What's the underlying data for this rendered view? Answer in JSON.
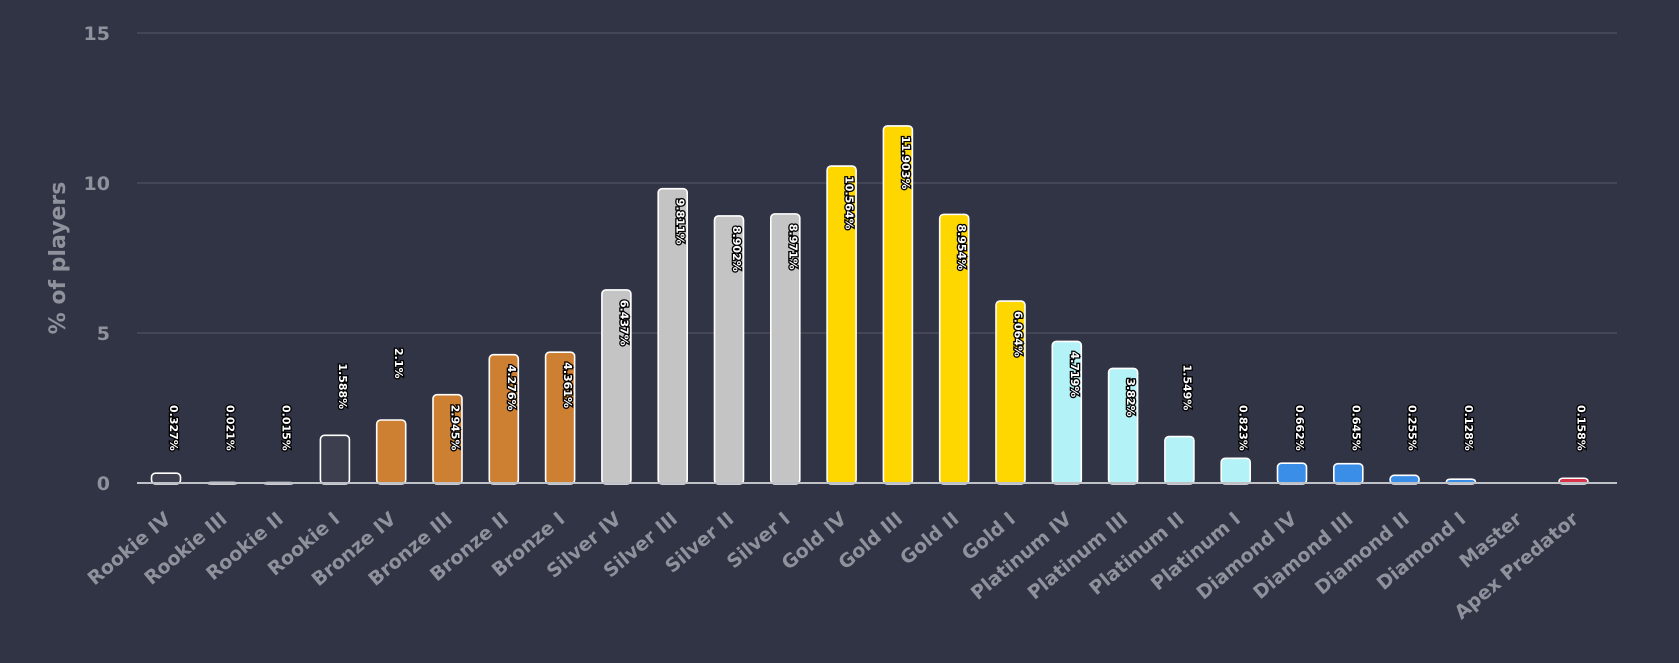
{
  "chart_data": {
    "type": "bar",
    "title": "",
    "xlabel": "",
    "ylabel": "% of players",
    "ylim": [
      0,
      15
    ],
    "yticks": [
      0,
      5,
      10,
      15
    ],
    "grid": true,
    "legend": "none",
    "categories": [
      "Rookie IV",
      "Rookie III",
      "Rookie II",
      "Rookie I",
      "Bronze IV",
      "Bronze III",
      "Bronze II",
      "Bronze I",
      "Silver IV",
      "Silver III",
      "Silver II",
      "Silver I",
      "Gold IV",
      "Gold III",
      "Gold II",
      "Gold I",
      "Platinum IV",
      "Platinum III",
      "Platinum II",
      "Platinum I",
      "Diamond IV",
      "Diamond III",
      "Diamond II",
      "Diamond I",
      "Master",
      "Apex Predator"
    ],
    "values": [
      0.327,
      0.021,
      0.015,
      1.588,
      2.1,
      2.945,
      4.276,
      4.361,
      6.437,
      9.811,
      8.902,
      8.971,
      10.564,
      11.903,
      8.954,
      6.064,
      4.719,
      3.82,
      1.549,
      0.823,
      0.662,
      0.645,
      0.255,
      0.128,
      0,
      0.158
    ],
    "data_labels": [
      "0.327%",
      "0.021%",
      "0.015%",
      "1.588%",
      "2.1%",
      "2.945%",
      "4.276%",
      "4.361%",
      "6.437%",
      "9.811%",
      "8.902%",
      "8.971%",
      "10.564%",
      "11.903%",
      "8.954%",
      "6.064%",
      "4.719%",
      "3.82%",
      "1.549%",
      "0.823%",
      "0.662%",
      "0.645%",
      "0.255%",
      "0.128%",
      "",
      "0.158%"
    ],
    "colors": [
      "#3d3f4f",
      "#3d3f4f",
      "#3d3f4f",
      "#3d3f4f",
      "#cd7f32",
      "#cd7f32",
      "#cd7f32",
      "#cd7f32",
      "#c4c4c4",
      "#c4c4c4",
      "#c4c4c4",
      "#c4c4c4",
      "#ffd700",
      "#ffd700",
      "#ffd700",
      "#ffd700",
      "#b3f3f7",
      "#b3f3f7",
      "#b3f3f7",
      "#b3f3f7",
      "#3b8ee8",
      "#3b8ee8",
      "#3b8ee8",
      "#3b8ee8",
      "#9b59d6",
      "#d9344a"
    ],
    "background": "#313445",
    "grid_color": "#4a4d5c",
    "text_color": "#8f929c"
  }
}
